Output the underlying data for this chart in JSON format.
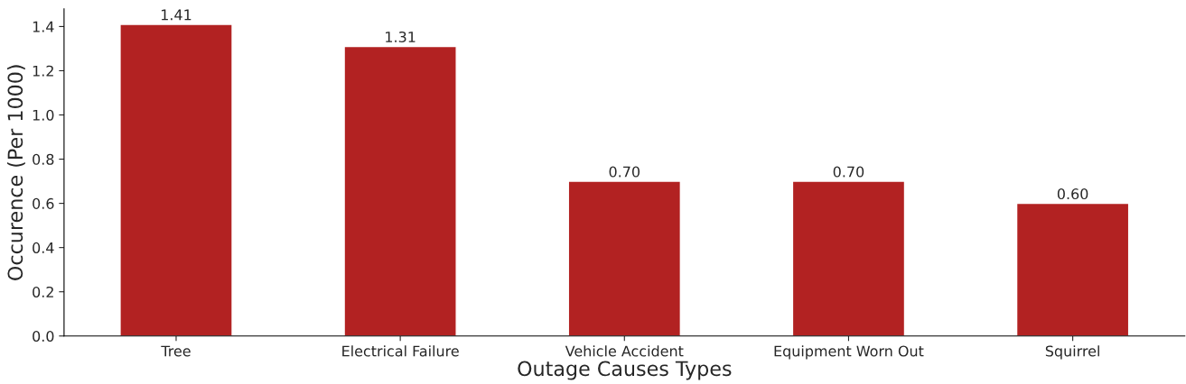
{
  "chart_data": {
    "type": "bar",
    "xlabel": "Outage Causes Types",
    "ylabel": "Occurence (Per 1000)",
    "categories": [
      "Tree",
      "Electrical Failure",
      "Vehicle Accident",
      "Equipment Worn Out",
      "Squirrel"
    ],
    "values": [
      1.41,
      1.31,
      0.7,
      0.7,
      0.6
    ],
    "value_labels": [
      "1.41",
      "1.31",
      "0.70",
      "0.70",
      "0.60"
    ],
    "color": "#b22222",
    "ylim": [
      0,
      1.48
    ],
    "yticks": [
      {
        "value": 0,
        "label": "0.0"
      },
      0.2,
      0.4,
      0.6,
      0.8,
      {
        "value": 1,
        "label": "1.0"
      },
      1.2,
      1.4
    ],
    "grid": false
  }
}
